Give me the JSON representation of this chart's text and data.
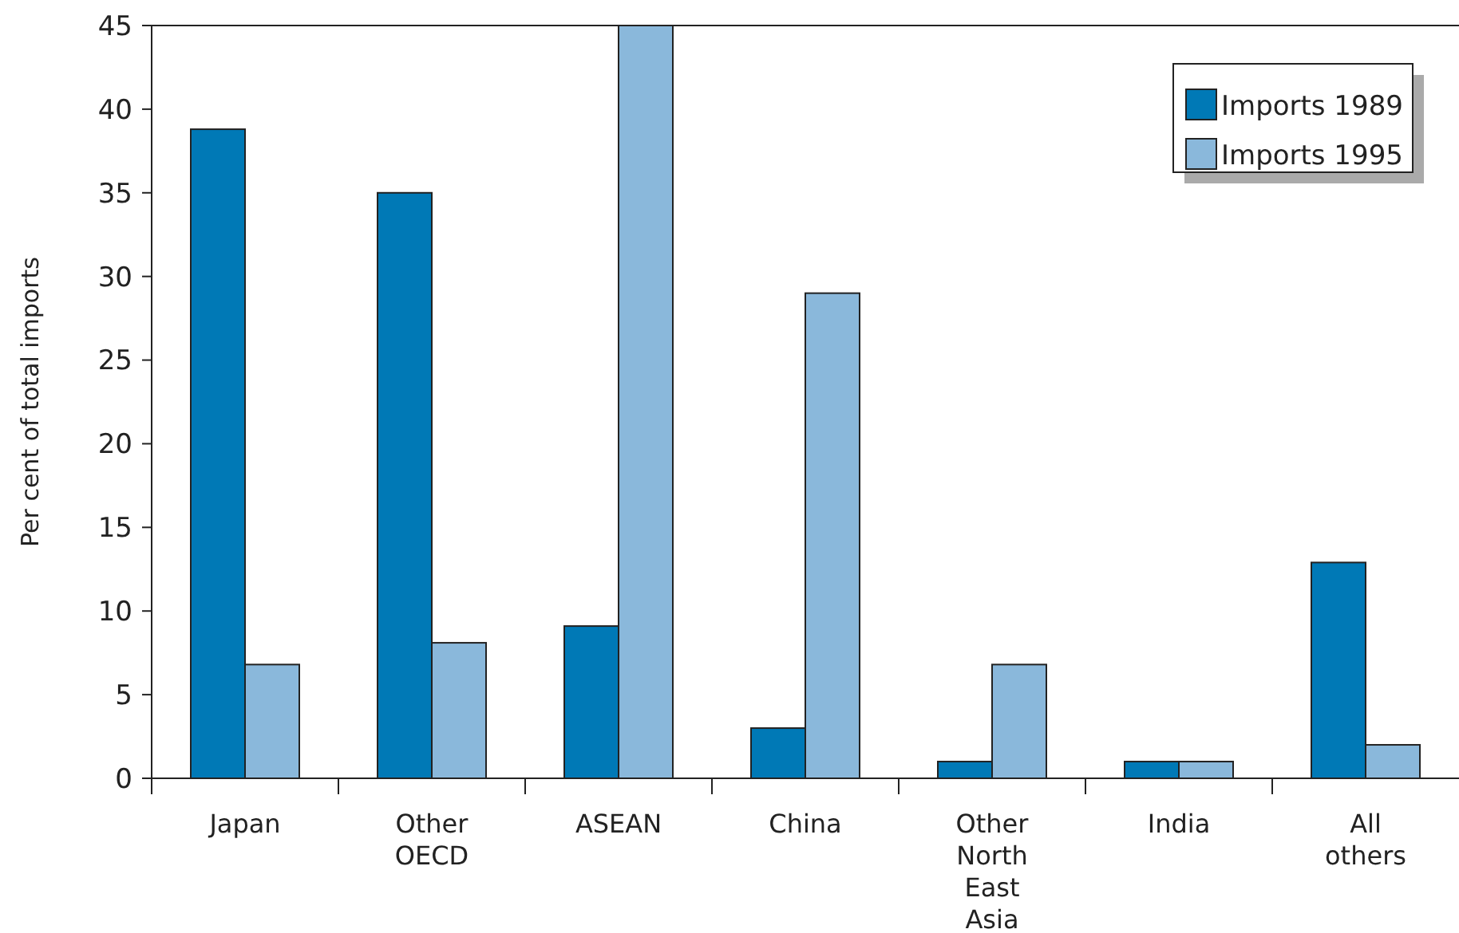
{
  "chart_data": {
    "type": "bar",
    "ylabel": "Per cent of total imports",
    "categories": [
      "Japan",
      "Other OECD",
      "ASEAN",
      "China",
      "Other North East Asia",
      "India",
      "All others"
    ],
    "series": [
      {
        "name": "Imports 1989",
        "color": "#0079b6",
        "values": [
          38.8,
          35,
          9.1,
          3,
          1,
          1,
          12.9
        ]
      },
      {
        "name": "Imports 1995",
        "color": "#8ab8db",
        "values": [
          6.8,
          8.1,
          45,
          29,
          6.8,
          1,
          2
        ]
      }
    ],
    "ylim": [
      0,
      45
    ],
    "yticks": [
      0,
      5,
      10,
      15,
      20,
      25,
      30,
      35,
      40,
      45
    ],
    "grid": false,
    "legend": "top right"
  }
}
